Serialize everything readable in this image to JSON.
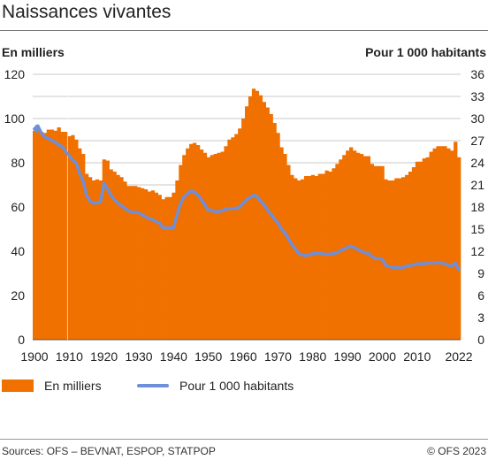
{
  "title": "Naissances vivantes",
  "chart_data": {
    "type": "bar",
    "left_axis_title": "En milliers",
    "right_axis_title": "Pour 1 000 habitants",
    "y_left": {
      "range": [
        0,
        120
      ],
      "ticks": [
        "0",
        "20",
        "40",
        "60",
        "80",
        "100",
        "120"
      ]
    },
    "y_right": {
      "range": [
        0,
        36
      ],
      "ticks": [
        "0",
        "3",
        "6",
        "9",
        "12",
        "15",
        "18",
        "21",
        "24",
        "27",
        "30",
        "33",
        "36"
      ]
    },
    "x": {
      "range": [
        1900,
        2022
      ],
      "ticks": [
        "1900",
        "1910",
        "1920",
        "1930",
        "1940",
        "1950",
        "1960",
        "1970",
        "1980",
        "1990",
        "2000",
        "2010",
        "2022"
      ]
    },
    "colors": {
      "bars": "#f07000",
      "line": "#6f8fd8"
    },
    "series": [
      {
        "name": "En milliers",
        "kind": "bar",
        "axis": "left",
        "years": [
          1900,
          1901,
          1902,
          1903,
          1904,
          1905,
          1906,
          1907,
          1908,
          1909,
          1910,
          1911,
          1912,
          1913,
          1914,
          1915,
          1916,
          1917,
          1918,
          1919,
          1920,
          1921,
          1922,
          1923,
          1924,
          1925,
          1926,
          1927,
          1928,
          1929,
          1930,
          1931,
          1932,
          1933,
          1934,
          1935,
          1936,
          1937,
          1938,
          1939,
          1940,
          1941,
          1942,
          1943,
          1944,
          1945,
          1946,
          1947,
          1948,
          1949,
          1950,
          1951,
          1952,
          1953,
          1954,
          1955,
          1956,
          1957,
          1958,
          1959,
          1960,
          1961,
          1962,
          1963,
          1964,
          1965,
          1966,
          1967,
          1968,
          1969,
          1970,
          1971,
          1972,
          1973,
          1974,
          1975,
          1976,
          1977,
          1978,
          1979,
          1980,
          1981,
          1982,
          1983,
          1984,
          1985,
          1986,
          1987,
          1988,
          1989,
          1990,
          1991,
          1992,
          1993,
          1994,
          1995,
          1996,
          1997,
          1998,
          1999,
          2000,
          2001,
          2002,
          2003,
          2004,
          2005,
          2006,
          2007,
          2008,
          2009,
          2010,
          2011,
          2012,
          2013,
          2014,
          2015,
          2016,
          2017,
          2018,
          2019,
          2020,
          2021,
          2022
        ],
        "values": [
          94.5,
          96.0,
          94.0,
          93.5,
          95.0,
          95.0,
          94.5,
          96.0,
          94.0,
          94.0,
          92.0,
          92.5,
          90.5,
          86.5,
          84.0,
          75.0,
          73.5,
          72.0,
          72.5,
          72.0,
          81.5,
          81.0,
          77.0,
          76.0,
          74.5,
          73.5,
          71.5,
          69.5,
          69.5,
          69.5,
          69.0,
          68.5,
          68.0,
          67.0,
          67.5,
          66.5,
          65.5,
          63.5,
          64.5,
          64.5,
          66.5,
          72.0,
          79.0,
          83.5,
          86.5,
          88.5,
          89.0,
          88.0,
          86.0,
          84.5,
          82.5,
          83.5,
          84.0,
          84.5,
          85.0,
          87.5,
          90.5,
          91.5,
          93.0,
          95.5,
          100.0,
          105.5,
          110.0,
          113.5,
          112.5,
          110.5,
          107.5,
          105.0,
          102.0,
          98.0,
          93.5,
          87.0,
          84.0,
          79.0,
          74.5,
          73.0,
          72.0,
          72.5,
          74.0,
          74.0,
          74.5,
          74.0,
          75.0,
          75.0,
          76.5,
          76.0,
          77.5,
          79.5,
          81.5,
          83.5,
          85.5,
          87.0,
          85.5,
          84.5,
          84.0,
          83.0,
          83.0,
          79.5,
          78.5,
          78.5,
          78.5,
          72.5,
          72.0,
          72.0,
          73.0,
          73.0,
          73.5,
          74.5,
          76.0,
          78.0,
          80.5,
          80.5,
          82.0,
          82.5,
          85.0,
          86.5,
          87.5,
          87.5,
          87.5,
          86.5,
          85.5,
          89.5,
          82.5
        ]
      },
      {
        "name": "Pour 1 000 habitants",
        "kind": "line",
        "axis": "right",
        "points": [
          [
            1900,
            28.6
          ],
          [
            1901,
            29.0
          ],
          [
            1902,
            28.0
          ],
          [
            1903,
            27.5
          ],
          [
            1904,
            27.3
          ],
          [
            1905,
            27.0
          ],
          [
            1906,
            26.8
          ],
          [
            1907,
            26.4
          ],
          [
            1908,
            26.2
          ],
          [
            1909,
            25.5
          ],
          [
            1910,
            25.0
          ],
          [
            1911,
            24.3
          ],
          [
            1912,
            24.0
          ],
          [
            1913,
            22.5
          ],
          [
            1914,
            21.5
          ],
          [
            1915,
            19.5
          ],
          [
            1916,
            18.8
          ],
          [
            1917,
            18.5
          ],
          [
            1918,
            18.6
          ],
          [
            1919,
            18.7
          ],
          [
            1920,
            21.2
          ],
          [
            1921,
            20.5
          ],
          [
            1922,
            19.6
          ],
          [
            1923,
            19.0
          ],
          [
            1924,
            18.5
          ],
          [
            1925,
            18.2
          ],
          [
            1926,
            17.8
          ],
          [
            1927,
            17.5
          ],
          [
            1928,
            17.3
          ],
          [
            1929,
            17.3
          ],
          [
            1930,
            17.2
          ],
          [
            1931,
            16.9
          ],
          [
            1932,
            16.7
          ],
          [
            1933,
            16.4
          ],
          [
            1934,
            16.3
          ],
          [
            1935,
            16.0
          ],
          [
            1936,
            15.8
          ],
          [
            1937,
            15.1
          ],
          [
            1938,
            15.2
          ],
          [
            1939,
            15.2
          ],
          [
            1940,
            15.2
          ],
          [
            1941,
            17.0
          ],
          [
            1942,
            18.5
          ],
          [
            1943,
            19.4
          ],
          [
            1944,
            19.8
          ],
          [
            1945,
            20.2
          ],
          [
            1946,
            20.0
          ],
          [
            1947,
            19.6
          ],
          [
            1948,
            19.0
          ],
          [
            1949,
            18.3
          ],
          [
            1950,
            17.5
          ],
          [
            1951,
            17.6
          ],
          [
            1952,
            17.3
          ],
          [
            1953,
            17.4
          ],
          [
            1954,
            17.5
          ],
          [
            1955,
            17.7
          ],
          [
            1956,
            17.8
          ],
          [
            1957,
            17.8
          ],
          [
            1958,
            17.8
          ],
          [
            1959,
            18.0
          ],
          [
            1960,
            18.5
          ],
          [
            1961,
            19.0
          ],
          [
            1962,
            19.3
          ],
          [
            1963,
            19.6
          ],
          [
            1964,
            19.4
          ],
          [
            1965,
            18.8
          ],
          [
            1966,
            18.3
          ],
          [
            1967,
            17.6
          ],
          [
            1968,
            17.0
          ],
          [
            1969,
            16.4
          ],
          [
            1970,
            15.8
          ],
          [
            1971,
            15.0
          ],
          [
            1972,
            14.5
          ],
          [
            1973,
            13.7
          ],
          [
            1974,
            12.9
          ],
          [
            1975,
            12.3
          ],
          [
            1976,
            11.7
          ],
          [
            1977,
            11.5
          ],
          [
            1978,
            11.4
          ],
          [
            1979,
            11.5
          ],
          [
            1980,
            11.7
          ],
          [
            1981,
            11.7
          ],
          [
            1982,
            11.8
          ],
          [
            1983,
            11.6
          ],
          [
            1984,
            11.6
          ],
          [
            1985,
            11.6
          ],
          [
            1986,
            11.7
          ],
          [
            1987,
            11.8
          ],
          [
            1988,
            12.1
          ],
          [
            1989,
            12.3
          ],
          [
            1990,
            12.5
          ],
          [
            1991,
            12.7
          ],
          [
            1992,
            12.5
          ],
          [
            1993,
            12.2
          ],
          [
            1994,
            12.0
          ],
          [
            1995,
            11.8
          ],
          [
            1996,
            11.7
          ],
          [
            1997,
            11.3
          ],
          [
            1998,
            11.0
          ],
          [
            1999,
            11.0
          ],
          [
            2000,
            10.9
          ],
          [
            2001,
            10.1
          ],
          [
            2002,
            9.9
          ],
          [
            2003,
            9.8
          ],
          [
            2004,
            9.8
          ],
          [
            2005,
            9.8
          ],
          [
            2006,
            9.8
          ],
          [
            2007,
            10.0
          ],
          [
            2008,
            10.0
          ],
          [
            2009,
            10.2
          ],
          [
            2010,
            10.3
          ],
          [
            2011,
            10.3
          ],
          [
            2012,
            10.3
          ],
          [
            2013,
            10.4
          ],
          [
            2014,
            10.5
          ],
          [
            2015,
            10.4
          ],
          [
            2016,
            10.5
          ],
          [
            2017,
            10.4
          ],
          [
            2018,
            10.3
          ],
          [
            2019,
            10.1
          ],
          [
            2020,
            10.0
          ],
          [
            2021,
            10.4
          ],
          [
            2022,
            9.5
          ]
        ]
      }
    ],
    "grid": true,
    "legend_position": "bottom-left"
  },
  "legend": {
    "bars_label": "En milliers",
    "line_label": "Pour 1 000 habitants"
  },
  "footer": {
    "sources": "Sources: OFS – BEVNAT, ESPOP, STATPOP",
    "copyright": "© OFS 2023"
  }
}
